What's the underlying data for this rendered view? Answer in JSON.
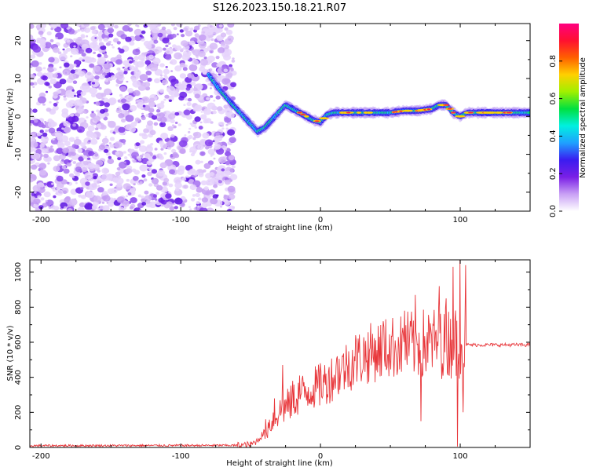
{
  "figure_title": "S126.2023.150.18.21.R07",
  "chart_data": [
    {
      "type": "heatmap",
      "title": "S126.2023.150.18.21.R07",
      "xlabel": "Height of straight line (km)",
      "ylabel": "Frequency (Hz)",
      "xlim": [
        -208,
        150
      ],
      "ylim": [
        -25,
        24.5
      ],
      "x_ticks": [
        -200,
        -100,
        0,
        100
      ],
      "y_ticks": [
        20,
        10,
        0,
        -10,
        -20
      ],
      "colorbar": {
        "label": "Normalized spectral amplitude",
        "range": [
          0.0,
          1.0
        ],
        "ticks": [
          0.0,
          0.2,
          0.4,
          0.6,
          0.8
        ],
        "colormap": [
          "#ffffff",
          "#c9a0f5",
          "#7a1fe6",
          "#3a1cf0",
          "#1fa0ff",
          "#00f0e0",
          "#00e040",
          "#a0f000",
          "#ffd000",
          "#ff6000",
          "#ff1030",
          "#ff0080"
        ]
      },
      "noise_region_x": [
        -208,
        -62
      ],
      "ridge": {
        "x": [
          -80,
          -72,
          -65,
          -60,
          -55,
          -50,
          -45,
          -40,
          -35,
          -30,
          -25,
          -20,
          -15,
          -10,
          -5,
          0,
          5,
          10,
          20,
          30,
          40,
          50,
          60,
          70,
          80,
          85,
          90,
          95,
          100,
          105,
          110,
          120,
          130,
          140,
          150
        ],
        "y": [
          11,
          7,
          4,
          2,
          0,
          -2,
          -4,
          -3,
          -1,
          1,
          3,
          2,
          1,
          0,
          -1,
          -1.5,
          0.5,
          1,
          1,
          1,
          1,
          1,
          1.5,
          1.5,
          2,
          3,
          3,
          1,
          0,
          1,
          1,
          1,
          1,
          1,
          1
        ]
      },
      "grid": false
    },
    {
      "type": "line",
      "xlabel": "Height of straight line (km)",
      "ylabel": "SNR (10 * v/v)",
      "xlim": [
        -208,
        150
      ],
      "ylim": [
        0,
        1070
      ],
      "x_ticks": [
        -200,
        -100,
        0,
        100
      ],
      "y_ticks": [
        0,
        200,
        400,
        600,
        800,
        1000
      ],
      "color": "#e8363a",
      "envelope": {
        "x": [
          -208,
          -60,
          -50,
          -45,
          -40,
          -35,
          -30,
          -25,
          -20,
          -15,
          -10,
          -5,
          0,
          5,
          10,
          15,
          20,
          25,
          30,
          35,
          40,
          45,
          50,
          55,
          60,
          65,
          70,
          75,
          80,
          85,
          90,
          95,
          100,
          103,
          105,
          110,
          120,
          130,
          140,
          150
        ],
        "y": [
          10,
          12,
          15,
          40,
          90,
          150,
          200,
          230,
          260,
          300,
          320,
          340,
          350,
          380,
          410,
          440,
          470,
          500,
          520,
          535,
          550,
          560,
          570,
          575,
          580,
          585,
          590,
          590,
          595,
          600,
          600,
          600,
          600,
          590,
          585,
          585,
          585,
          585,
          585,
          585
        ]
      },
      "spikes": [
        {
          "x": -33,
          "y": 280
        },
        {
          "x": -27,
          "y": 470
        },
        {
          "x": -20,
          "y": 380
        },
        {
          "x": -15,
          "y": 410
        },
        {
          "x": 0,
          "y": 480
        },
        {
          "x": 12,
          "y": 520
        },
        {
          "x": 25,
          "y": 640
        },
        {
          "x": 45,
          "y": 720
        },
        {
          "x": 60,
          "y": 780
        },
        {
          "x": 68,
          "y": 870
        },
        {
          "x": 72,
          "y": 150
        },
        {
          "x": 85,
          "y": 920
        },
        {
          "x": 90,
          "y": 850
        },
        {
          "x": 95,
          "y": 1030
        },
        {
          "x": 98,
          "y": 5
        },
        {
          "x": 100,
          "y": 1070
        },
        {
          "x": 104,
          "y": 1040
        },
        {
          "x": 102,
          "y": 200
        }
      ],
      "grid": false
    }
  ]
}
